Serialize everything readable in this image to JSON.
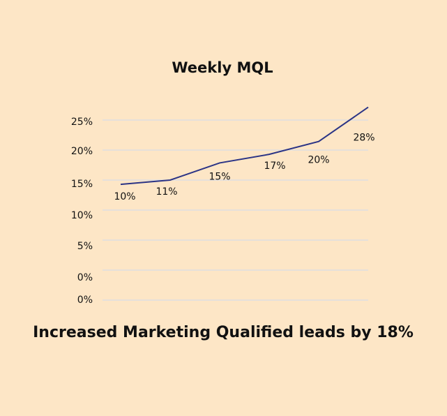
{
  "chart_data": {
    "type": "line",
    "title": "Weekly MQL",
    "subtitle": "Increased Marketing Qualified leads by 18%",
    "categories": [
      null,
      null,
      null,
      null,
      null,
      null
    ],
    "series": [
      {
        "color": "#2b3486",
        "values": [
          10,
          11,
          15,
          17,
          20,
          28
        ],
        "value_labels": [
          "10%",
          "11%",
          "15%",
          "17%",
          "20%",
          "28%"
        ]
      }
    ],
    "ylim": [
      -17,
      25
    ],
    "ytick_labels": [
      "25%",
      "20%",
      "15%",
      "10%",
      "5%",
      "0%",
      "0%"
    ],
    "grid": true
  }
}
